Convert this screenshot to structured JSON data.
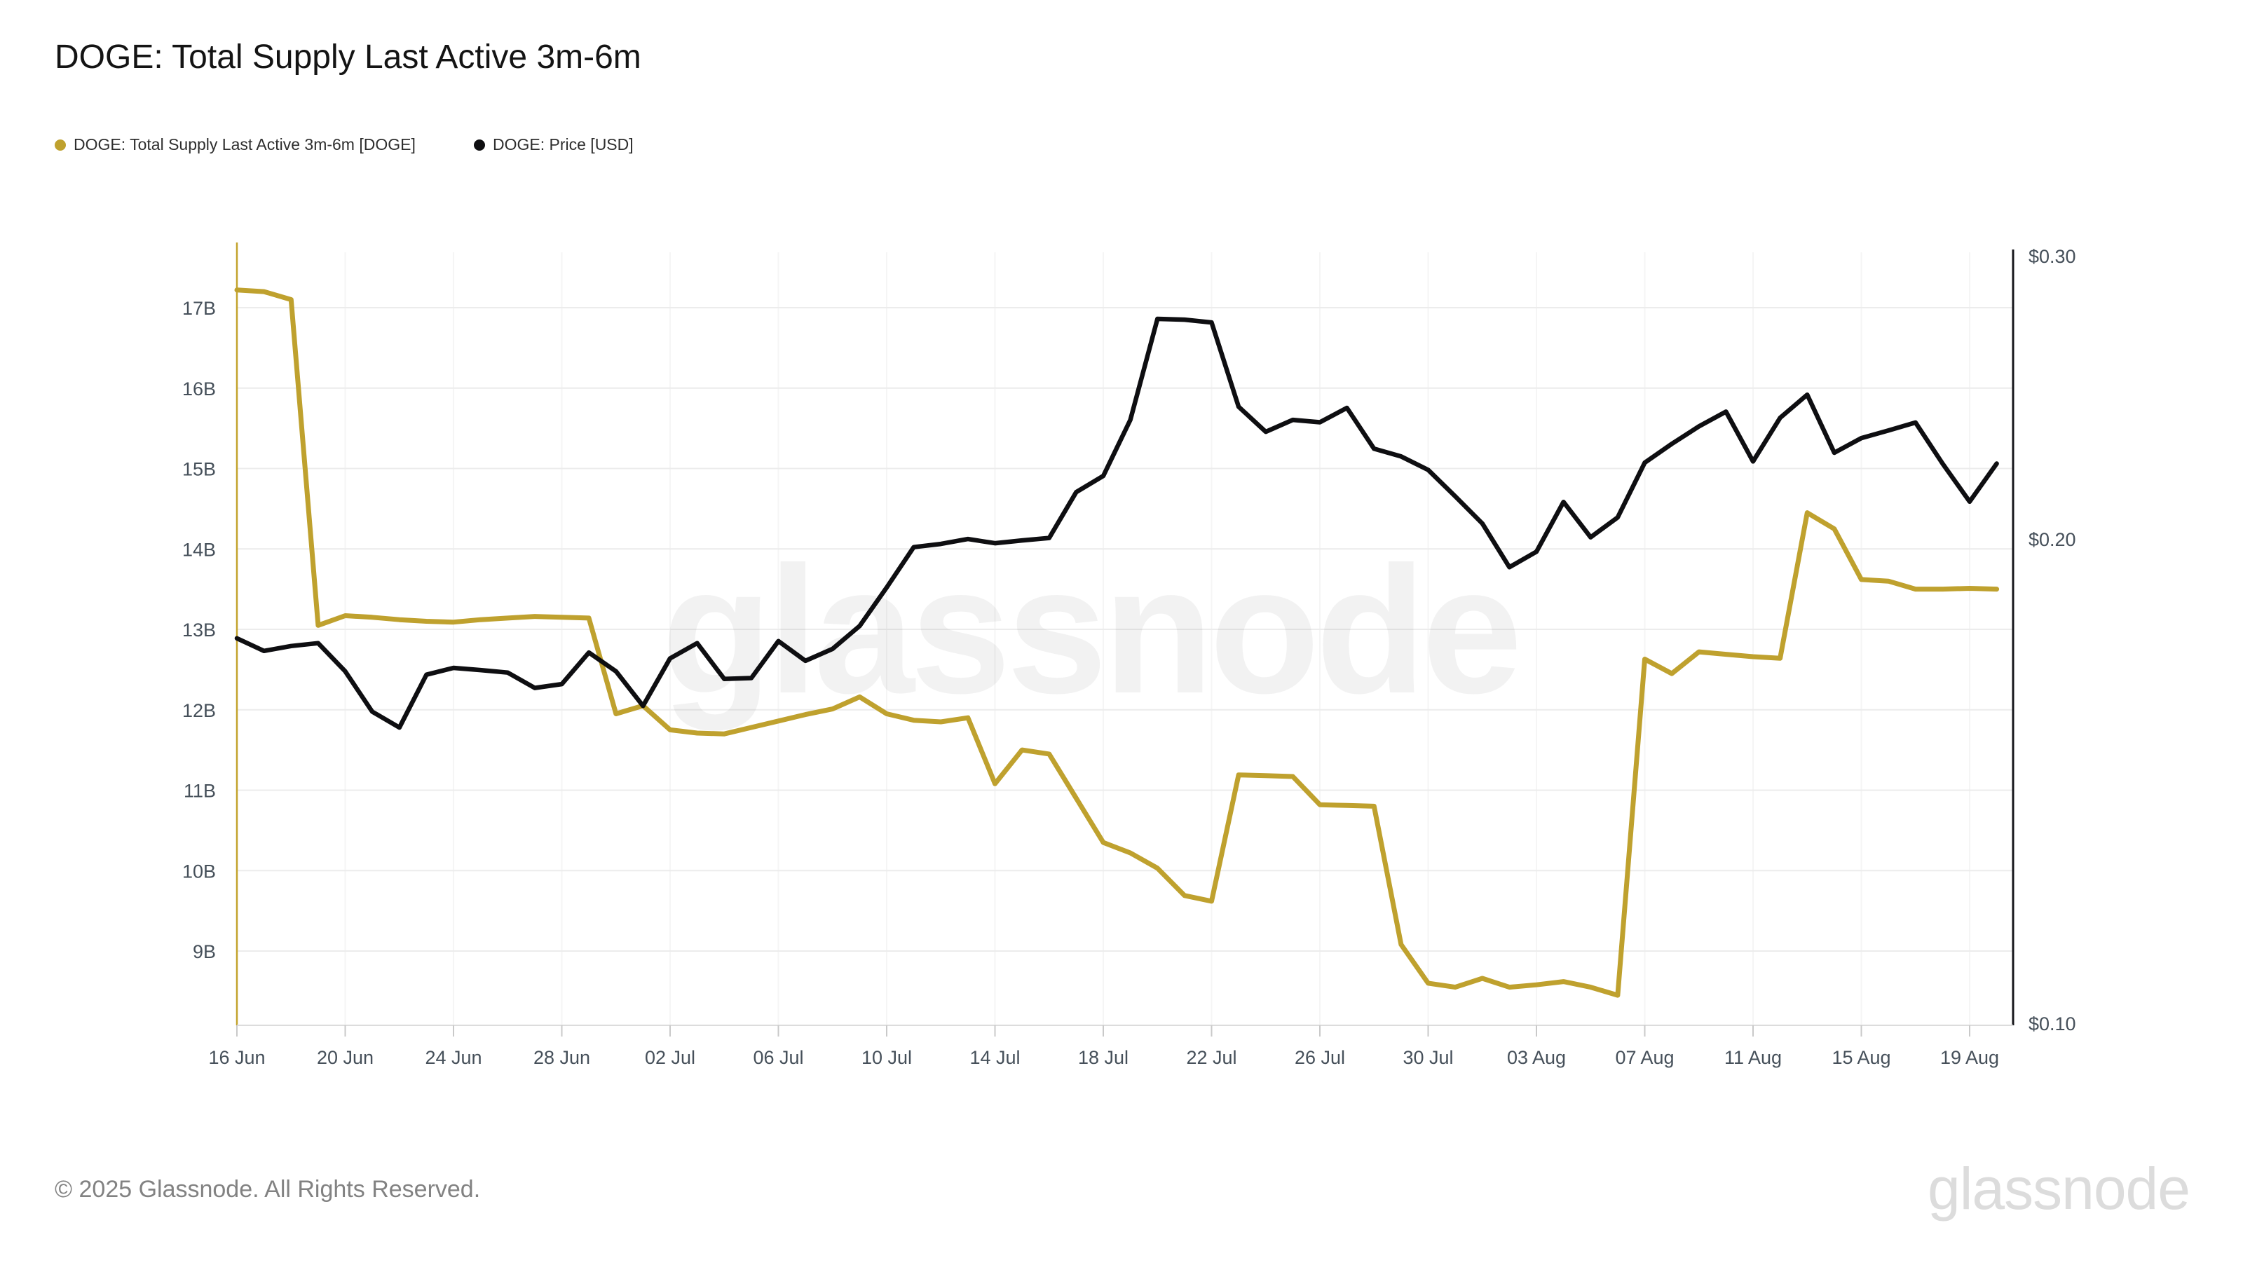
{
  "header": {
    "title": "DOGE: Total Supply Last Active 3m-6m"
  },
  "legend": {
    "items": [
      {
        "label": "DOGE: Total Supply Last Active 3m-6m [DOGE]",
        "color": "#bfa12e"
      },
      {
        "label": "DOGE: Price [USD]",
        "color": "#0e0e11"
      }
    ]
  },
  "watermark": {
    "text": "glassnode"
  },
  "footer": {
    "copyright": "© 2025 Glassnode. All Rights Reserved.",
    "brand": "glassnode"
  },
  "chart_data": {
    "type": "line",
    "title": "DOGE: Total Supply Last Active 3m-6m",
    "grid": true,
    "legend_position": "top-left",
    "x_tick_labels": [
      "16 Jun",
      "20 Jun",
      "24 Jun",
      "28 Jun",
      "02 Jul",
      "06 Jul",
      "10 Jul",
      "14 Jul",
      "18 Jul",
      "22 Jul",
      "26 Jul",
      "30 Jul",
      "03 Aug",
      "07 Aug",
      "11 Aug",
      "15 Aug",
      "19 Aug"
    ],
    "x_tick_day_indices": [
      0,
      4,
      8,
      12,
      16,
      20,
      24,
      28,
      32,
      36,
      40,
      44,
      48,
      52,
      56,
      60,
      64
    ],
    "left_axis": {
      "unit": "B",
      "labels": [
        "17B",
        "16B",
        "15B",
        "14B",
        "13B",
        "12B",
        "11B",
        "10B",
        "9B"
      ],
      "values": [
        17,
        16,
        15,
        14,
        13,
        12,
        11,
        10,
        9
      ],
      "scale": "linear"
    },
    "right_axis": {
      "unit": "USD",
      "labels": [
        "$0.30",
        "$0.20",
        "$0.10"
      ],
      "values": [
        0.3,
        0.2,
        0.1
      ],
      "scale": "log",
      "min": 0.1,
      "max": 0.3
    },
    "series": [
      {
        "name": "DOGE: Total Supply Last Active 3m-6m [DOGE]",
        "axis": "left",
        "color": "#bfa12e",
        "values": [
          17.22,
          17.2,
          17.1,
          13.05,
          13.17,
          13.15,
          13.12,
          13.1,
          13.09,
          13.12,
          13.14,
          13.16,
          13.15,
          13.14,
          11.95,
          12.05,
          11.75,
          11.71,
          11.7,
          11.78,
          11.86,
          11.94,
          12.01,
          12.16,
          11.95,
          11.87,
          11.85,
          11.9,
          11.08,
          11.5,
          11.45,
          10.9,
          10.35,
          10.22,
          10.03,
          9.69,
          9.62,
          11.19,
          11.18,
          11.17,
          10.82,
          10.81,
          10.8,
          9.08,
          8.6,
          8.55,
          8.66,
          8.55,
          8.58,
          8.62,
          8.55,
          8.45,
          12.63,
          12.45,
          12.72,
          12.69,
          12.66,
          12.64,
          14.45,
          14.25,
          13.62,
          13.6,
          13.5,
          13.5,
          13.51,
          13.5
        ]
      },
      {
        "name": "DOGE: Price [USD]",
        "axis": "right",
        "color": "#0e0e11",
        "values": [
          0.1735,
          0.1704,
          0.1716,
          0.1723,
          0.1655,
          0.1562,
          0.1527,
          0.1647,
          0.1663,
          0.1658,
          0.1652,
          0.1616,
          0.1625,
          0.17,
          0.1655,
          0.1575,
          0.1686,
          0.1723,
          0.1637,
          0.1639,
          0.1728,
          0.168,
          0.1709,
          0.1766,
          0.1866,
          0.1977,
          0.1986,
          0.2,
          0.1988,
          0.1996,
          0.2003,
          0.2139,
          0.2189,
          0.2372,
          0.2741,
          0.2738,
          0.2727,
          0.2417,
          0.2332,
          0.2372,
          0.2364,
          0.2413,
          0.2276,
          0.2251,
          0.2208,
          0.2126,
          0.2045,
          0.1921,
          0.1964,
          0.2109,
          0.2005,
          0.2063,
          0.2231,
          0.2292,
          0.235,
          0.24,
          0.2235,
          0.2379,
          0.2459,
          0.2263,
          0.2311,
          0.2336,
          0.2363,
          0.2228,
          0.211,
          0.2228
        ]
      }
    ],
    "colors": {
      "gridline": "#ececec",
      "vertical_gridline": "#f5f5f5",
      "axis_label": "#46505a",
      "left_axis_line": "#c3a32d",
      "right_axis_line": "#17171c",
      "bottom_axis_line": "#dcdcdc",
      "tick_mark": "#c9c9c9"
    }
  }
}
